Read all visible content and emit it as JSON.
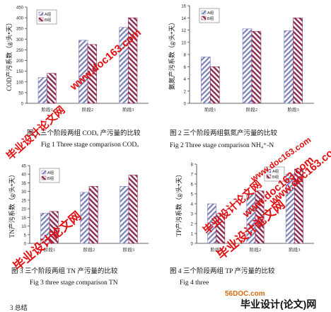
{
  "chart_data": [
    {
      "type": "bar",
      "categories": [
        "阶段1",
        "阶段2",
        "阶段3"
      ],
      "series": [
        {
          "name": "A组",
          "values": [
            120,
            295,
            355
          ]
        },
        {
          "name": "B组",
          "values": [
            140,
            275,
            400
          ]
        }
      ],
      "ylabel": "COD产污系数（g/头•天）",
      "ylim": [
        0,
        450
      ],
      "yticks": [
        0,
        50,
        100,
        150,
        200,
        250,
        300,
        350,
        400,
        450
      ],
      "caption": "图 1 三个阶段两组 CODₒ 产污量的比较",
      "caption_en": "Fig 1 Three stage comparison CODₒ",
      "legend": "top-left",
      "colors": {
        "A": "#7a7fb8",
        "B": "#8a2a50"
      }
    },
    {
      "type": "bar",
      "categories": [
        "阶段1",
        "阶段2",
        "阶段3"
      ],
      "series": [
        {
          "name": "A组",
          "values": [
            7.6,
            12.2,
            11.9
          ]
        },
        {
          "name": "B组",
          "values": [
            6.0,
            11.8,
            14.0
          ]
        }
      ],
      "ylabel": "氨氮产污系数（g/头•天）",
      "ylim": [
        0,
        16
      ],
      "yticks": [
        0,
        2,
        4,
        6,
        8,
        10,
        12,
        14,
        16
      ],
      "caption": "图 2 三个阶段两组氨氮产污量的比较",
      "caption_en": "Fig 2 Three stage comparison NH₄⁺-N",
      "legend": "top-left",
      "colors": {
        "A": "#7a7fb8",
        "B": "#8a2a50"
      }
    },
    {
      "type": "bar",
      "categories": [
        "阶段1",
        "阶段2",
        "阶段3"
      ],
      "series": [
        {
          "name": "A组",
          "values": [
            17.5,
            29.5,
            33.0
          ]
        },
        {
          "name": "B组",
          "values": [
            18.5,
            33.0,
            39.5
          ]
        }
      ],
      "ylabel": "TN产污系数（g/头•天）",
      "ylim": [
        0,
        45
      ],
      "yticks": [
        0,
        5,
        10,
        15,
        20,
        25,
        30,
        35,
        40,
        45
      ],
      "caption": "图 3 三个阶段两组 TN 产污量的比较",
      "caption_en": "Fig 3 three stage comparison TN",
      "legend": "top-left",
      "colors": {
        "A": "#7a7fb8",
        "B": "#8a2a50"
      }
    },
    {
      "type": "bar",
      "categories": [
        "阶段1",
        "阶段2",
        "阶段3"
      ],
      "series": [
        {
          "name": "A组",
          "values": [
            4.0,
            5.0,
            7.0
          ]
        },
        {
          "name": "B组",
          "values": [
            3.0,
            5.3,
            7.5
          ]
        }
      ],
      "ylabel": "TP产污系数（g/头•天）",
      "ylim": [
        0,
        8
      ],
      "yticks": [
        0,
        1,
        2,
        3,
        4,
        5,
        6,
        7,
        8
      ],
      "caption": "图 4 三个阶段两组 TP 产污量的比较",
      "caption_en": "Fig 4 three",
      "legend": "top-right",
      "colors": {
        "A": "#7a7fb8",
        "B": "#8a2a50"
      }
    }
  ],
  "watermarks": {
    "url1": "www.doc163.com",
    "url2": "www.doc163.com",
    "url3": "www.doc163.com",
    "url4": "www.doc163.com",
    "net1": "毕业设计论文网",
    "net2": "毕业设计论文网",
    "net3": "毕业设计论文网",
    "net4": "毕业设计论文网",
    "footer_site": "56DOC.com",
    "footer_brand": "毕业设计(论文)网",
    "footer_fragment": "3 总结"
  }
}
